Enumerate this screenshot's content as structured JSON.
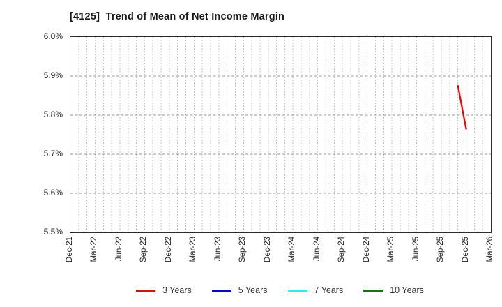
{
  "header": {
    "title": "[4125]  Trend of Mean of Net Income Margin"
  },
  "chart_data": {
    "type": "line",
    "title": "[4125]  Trend of Mean of Net Income Margin",
    "xlabel": "",
    "ylabel": "",
    "ylim": [
      5.5,
      6.0
    ],
    "y_tick_labels": [
      "6.0%",
      "5.9%",
      "5.8%",
      "5.7%",
      "5.6%",
      "5.5%"
    ],
    "y_tick_values": [
      6.0,
      5.9,
      5.8,
      5.7,
      5.6,
      5.5
    ],
    "x_tick_labels": [
      "Dec-21",
      "Mar-22",
      "Jun-22",
      "Sep-22",
      "Dec-22",
      "Mar-23",
      "Jun-23",
      "Sep-23",
      "Dec-23",
      "Mar-24",
      "Jun-24",
      "Sep-24",
      "Dec-24",
      "Mar-25",
      "Jun-25",
      "Sep-25",
      "Dec-25",
      "Mar-26"
    ],
    "x_start_label": "Dec-21",
    "x_end_label": "Mar-26",
    "months_span": 51,
    "grid": {
      "vertical": "monthly-dotted",
      "horizontal": "dashed-every-0.1pct",
      "vertical_color": "#b5b5b5",
      "horizontal_color": "#999999"
    },
    "frame_color": "#2b2b2b",
    "series": [
      {
        "name": "3 Years",
        "color": "#ff0000",
        "points": [
          {
            "x_label": "Nov-25",
            "month_index": 47,
            "value_pct": 5.875
          },
          {
            "x_label": "Dec-25",
            "month_index": 48,
            "value_pct": 5.765
          }
        ]
      },
      {
        "name": "5 Years",
        "color": "#0000ff",
        "points": []
      },
      {
        "name": "7 Years",
        "color": "#00ffff",
        "points": []
      },
      {
        "name": "10 Years",
        "color": "#008000",
        "points": []
      }
    ],
    "legend_position": "bottom-center"
  }
}
